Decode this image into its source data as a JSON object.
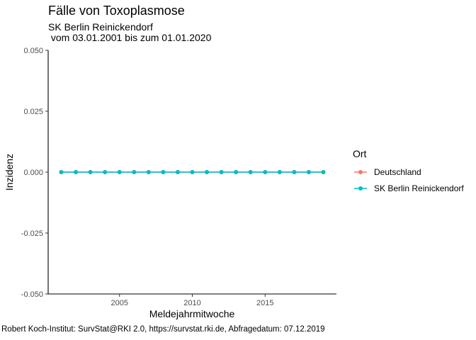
{
  "chart_data": {
    "type": "line",
    "title": "Fälle von Toxoplasmose",
    "subtitle_line1": "SK Berlin Reinickendorf",
    "subtitle_line2": " vom 03.01.2001 bis zum 01.01.2020",
    "caption": "Robert Koch-Institut: SurvStat@RKI 2.0, https://survstat.rki.de, Abfragedatum: 07.12.2019",
    "xlabel": "Meldejahrmitwoche",
    "ylabel": "Inzidenz",
    "xlim": [
      2000.1,
      2019.9
    ],
    "ylim": [
      -0.05,
      0.05
    ],
    "x_ticks": [
      2005,
      2010,
      2015
    ],
    "x_tick_labels": [
      "2005",
      "2010",
      "2015"
    ],
    "y_ticks": [
      -0.05,
      -0.025,
      0,
      0.025,
      0.05
    ],
    "y_tick_labels": [
      "-0.050",
      "-0.025",
      "0.000",
      "0.025",
      "0.050"
    ],
    "grid": false,
    "legend": {
      "title": "Ort",
      "position": "right",
      "entries": [
        "Deutschland",
        "SK Berlin Reinickendorf"
      ]
    },
    "x": [
      2001,
      2002,
      2003,
      2004,
      2005,
      2006,
      2007,
      2008,
      2009,
      2010,
      2011,
      2012,
      2013,
      2014,
      2015,
      2016,
      2017,
      2018,
      2019
    ],
    "series": [
      {
        "name": "Deutschland",
        "color": "#F8766D",
        "values": [
          0,
          0,
          0,
          0,
          0,
          0,
          0,
          0,
          0,
          0,
          0,
          0,
          0,
          0,
          0,
          0,
          0,
          0,
          0
        ]
      },
      {
        "name": "SK Berlin Reinickendorf",
        "color": "#00BFC4",
        "values": [
          0,
          0,
          0,
          0,
          0,
          0,
          0,
          0,
          0,
          0,
          0,
          0,
          0,
          0,
          0,
          0,
          0,
          0,
          0
        ]
      }
    ]
  }
}
